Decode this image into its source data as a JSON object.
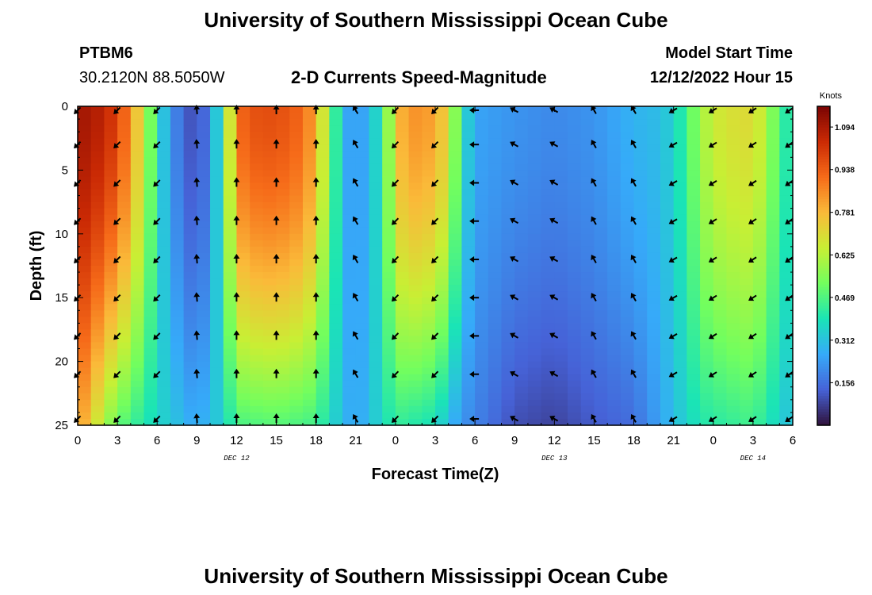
{
  "header": {
    "title": "University of Southern Mississippi Ocean Cube",
    "station_id": "PTBM6",
    "station_coords": "30.2120N  88.5050W",
    "chart_subtitle": "2-D Currents Speed-Magnitude",
    "model_start_label": "Model Start Time",
    "model_start_value": "12/12/2022 Hour 15",
    "footer_title": "University of Southern Mississippi Ocean Cube"
  },
  "colors": {
    "ramp": [
      "#30123b",
      "#4662d7",
      "#36aaf9",
      "#1ae4b6",
      "#72fe5e",
      "#c8ef34",
      "#faba39",
      "#f66b19",
      "#cb2a04",
      "#7a0403"
    ]
  },
  "chart_data": {
    "type": "heatmap",
    "title": "2-D Currents Speed-Magnitude",
    "xlabel": "Forecast Time(Z)",
    "ylabel": "Depth (ft)",
    "x_range_hours": [
      0,
      54
    ],
    "y_range_ft": [
      0,
      25
    ],
    "y_inverted": true,
    "x_ticks": [
      "0",
      "3",
      "6",
      "9",
      "12",
      "15",
      "18",
      "21",
      "0",
      "3",
      "6",
      "9",
      "12",
      "15",
      "18",
      "21",
      "0",
      "3",
      "6"
    ],
    "y_ticks": [
      "0",
      "5",
      "10",
      "15",
      "20",
      "25"
    ],
    "day_labels": [
      {
        "text": "DEC 12",
        "hour": 12
      },
      {
        "text": "DEC 13",
        "hour": 36
      },
      {
        "text": "DEC 14",
        "hour": 51
      }
    ],
    "colorbar": {
      "label": "Knots",
      "min": 0,
      "max": 1.17,
      "ticks": [
        "1.094",
        "0.938",
        "0.781",
        "0.625",
        "0.469",
        "0.312",
        "0.156"
      ],
      "tick_values": [
        1.094,
        0.938,
        0.781,
        0.625,
        0.469,
        0.312,
        0.156
      ]
    },
    "surface_speed_knots_by_hour": [
      [
        0,
        1.1
      ],
      [
        1,
        1.1
      ],
      [
        2,
        1.05
      ],
      [
        3,
        1.0
      ],
      [
        4,
        0.85
      ],
      [
        5,
        0.65
      ],
      [
        6,
        0.4
      ],
      [
        7,
        0.22
      ],
      [
        8,
        0.14
      ],
      [
        9,
        0.08
      ],
      [
        10,
        0.2
      ],
      [
        11,
        0.45
      ],
      [
        12,
        0.9
      ],
      [
        13,
        0.96
      ],
      [
        15,
        0.97
      ],
      [
        17,
        0.92
      ],
      [
        18,
        0.8
      ],
      [
        19,
        0.55
      ],
      [
        20,
        0.3
      ],
      [
        21,
        0.2
      ],
      [
        22,
        0.3
      ],
      [
        23,
        0.4
      ],
      [
        24,
        0.75
      ],
      [
        25,
        0.85
      ],
      [
        27,
        0.82
      ],
      [
        28,
        0.7
      ],
      [
        29,
        0.4
      ],
      [
        30,
        0.25
      ],
      [
        33,
        0.22
      ],
      [
        36,
        0.2
      ],
      [
        39,
        0.22
      ],
      [
        42,
        0.28
      ],
      [
        44,
        0.3
      ],
      [
        45,
        0.35
      ],
      [
        46,
        0.45
      ],
      [
        47,
        0.58
      ],
      [
        48,
        0.66
      ],
      [
        50,
        0.7
      ],
      [
        51,
        0.7
      ],
      [
        52,
        0.62
      ],
      [
        53,
        0.45
      ],
      [
        54,
        0.38
      ]
    ],
    "bottom_speed_knots_by_hour": [
      [
        0,
        0.85
      ],
      [
        2,
        0.6
      ],
      [
        3,
        0.5
      ],
      [
        5,
        0.4
      ],
      [
        9,
        0.25
      ],
      [
        11,
        0.35
      ],
      [
        12,
        0.46
      ],
      [
        15,
        0.48
      ],
      [
        18,
        0.45
      ],
      [
        20,
        0.3
      ],
      [
        21,
        0.24
      ],
      [
        24,
        0.43
      ],
      [
        27,
        0.38
      ],
      [
        29,
        0.22
      ],
      [
        33,
        0.1
      ],
      [
        36,
        0.08
      ],
      [
        39,
        0.12
      ],
      [
        42,
        0.15
      ],
      [
        44,
        0.25
      ],
      [
        47,
        0.4
      ],
      [
        51,
        0.45
      ],
      [
        53,
        0.35
      ],
      [
        54,
        0.3
      ]
    ],
    "arrow_direction_deg_by_hour": [
      [
        0,
        225
      ],
      [
        6,
        225
      ],
      [
        9,
        355
      ],
      [
        12,
        0
      ],
      [
        18,
        0
      ],
      [
        21,
        330
      ],
      [
        24,
        225
      ],
      [
        27,
        225
      ],
      [
        30,
        270
      ],
      [
        33,
        300
      ],
      [
        36,
        300
      ],
      [
        39,
        330
      ],
      [
        42,
        330
      ],
      [
        45,
        240
      ],
      [
        54,
        235
      ]
    ]
  }
}
